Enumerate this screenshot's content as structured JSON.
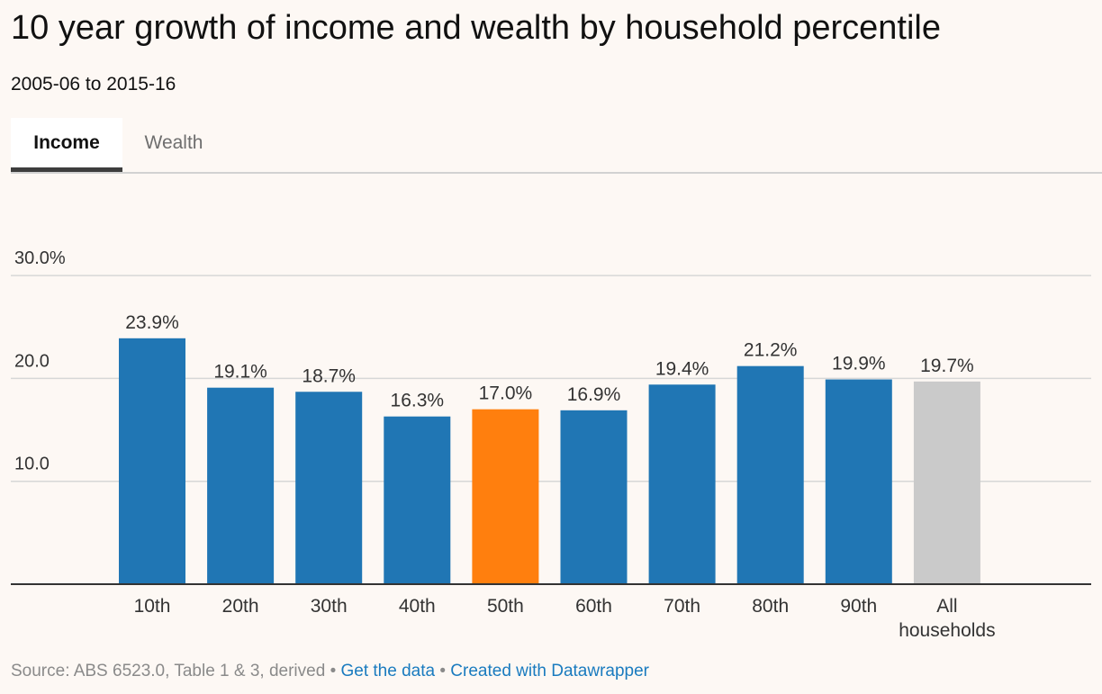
{
  "title": "10 year growth of income and wealth by household percentile",
  "subtitle": "2005-06 to 2015-16",
  "tabs": {
    "income": "Income",
    "wealth": "Wealth"
  },
  "colors": {
    "default_bar": "#2076b4",
    "highlight_bar": "#ff7f0e",
    "total_bar": "#cacaca",
    "grid": "#d7d7d7",
    "axis": "#333333"
  },
  "chart_data": {
    "type": "bar",
    "categories": [
      "10th",
      "20th",
      "30th",
      "40th",
      "50th",
      "60th",
      "70th",
      "80th",
      "90th",
      "All households"
    ],
    "values": [
      23.9,
      19.1,
      18.7,
      16.3,
      17.0,
      16.9,
      19.4,
      21.2,
      19.9,
      19.7
    ],
    "value_labels": [
      "23.9%",
      "19.1%",
      "18.7%",
      "16.3%",
      "17.0%",
      "16.9%",
      "19.4%",
      "21.2%",
      "19.9%",
      "19.7%"
    ],
    "bar_color_keys": [
      "default_bar",
      "default_bar",
      "default_bar",
      "default_bar",
      "highlight_bar",
      "default_bar",
      "default_bar",
      "default_bar",
      "default_bar",
      "total_bar"
    ],
    "yticks": [
      10,
      20,
      30
    ],
    "ytick_labels": [
      "10.0",
      "20.0",
      "30.0%"
    ],
    "ylim": [
      0,
      30
    ],
    "xlabel": "",
    "ylabel": "",
    "grid": true,
    "legend": "none"
  },
  "footer": {
    "source": "Source: ABS 6523.0, Table 1 & 3, derived",
    "separator": "•",
    "get_data": "Get the data",
    "created_with": "Created with Datawrapper"
  }
}
